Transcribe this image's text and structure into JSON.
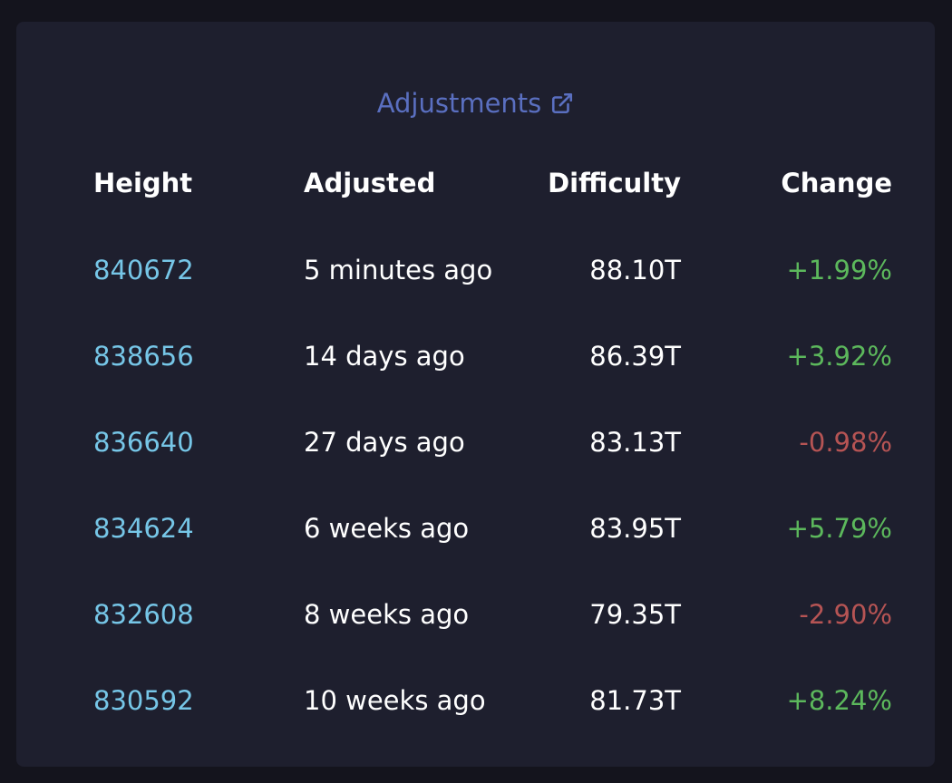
{
  "header": {
    "title": "Adjustments",
    "link_icon": "external-link-icon",
    "link_color": "#5a6fc0"
  },
  "table": {
    "columns": [
      "Height",
      "Adjusted",
      "Difficulty",
      "Change"
    ],
    "rows": [
      {
        "height": "840672",
        "adjusted": "5 minutes ago",
        "difficulty": "88.10T",
        "change": "+1.99%",
        "direction": "up"
      },
      {
        "height": "838656",
        "adjusted": "14 days ago",
        "difficulty": "86.39T",
        "change": "+3.92%",
        "direction": "up"
      },
      {
        "height": "836640",
        "adjusted": "27 days ago",
        "difficulty": "83.13T",
        "change": "-0.98%",
        "direction": "down"
      },
      {
        "height": "834624",
        "adjusted": "6 weeks ago",
        "difficulty": "83.95T",
        "change": "+5.79%",
        "direction": "up"
      },
      {
        "height": "832608",
        "adjusted": "8 weeks ago",
        "difficulty": "79.35T",
        "change": "-2.90%",
        "direction": "down"
      },
      {
        "height": "830592",
        "adjusted": "10 weeks ago",
        "difficulty": "81.73T",
        "change": "+8.24%",
        "direction": "up"
      }
    ]
  },
  "colors": {
    "background": "#14141d",
    "card": "#1e1f2e",
    "height_link": "#76c6e7",
    "positive": "#5cb85c",
    "negative": "#b65454",
    "text": "#ffffff"
  }
}
